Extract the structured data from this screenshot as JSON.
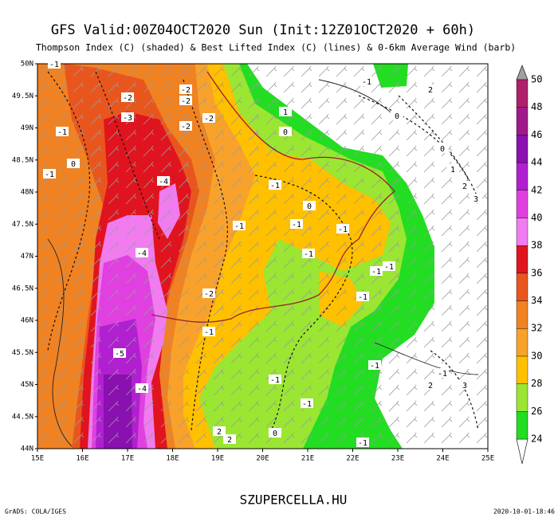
{
  "header": {
    "title": "GFS Valid:00Z04OCT2020 Sun (Init:12Z01OCT2020 + 60h)",
    "subtitle": "Thompson Index (C) (shaded) & Best Lifted Index (C) (lines) & 0-6km Average Wind (barb)"
  },
  "map": {
    "latitude_labels": [
      "50N",
      "49.5N",
      "49N",
      "48.5N",
      "48N",
      "47.5N",
      "47N",
      "46.5N",
      "46N",
      "45.5N",
      "45N",
      "44.5N",
      "44N"
    ],
    "longitude_labels": [
      "15E",
      "16E",
      "17E",
      "18E",
      "19E",
      "20E",
      "21E",
      "22E",
      "23E",
      "24E",
      "25E"
    ],
    "contour_labels": [
      "-1",
      "-2",
      "-2",
      "-2",
      "-3",
      "-2",
      "-2",
      "-1",
      "0",
      "-1",
      "-4",
      "-1",
      "-1",
      "0",
      "-1",
      "-1",
      "-4",
      "-1",
      "-1",
      "-1",
      "-2",
      "-1",
      "-1",
      "-5",
      "-4",
      "-1",
      "-1",
      "-1",
      "-1",
      "-1",
      "2",
      "1",
      "0",
      "0",
      "0",
      "1",
      "2",
      "3",
      "-1",
      "2",
      "3",
      "2",
      "0",
      "2"
    ]
  },
  "colorbar": {
    "levels": [
      24,
      26,
      28,
      30,
      32,
      34,
      36,
      38,
      40,
      42,
      44,
      46,
      48,
      50
    ],
    "colors": [
      "#22dd22",
      "#9ae633",
      "#ffc000",
      "#f8a22c",
      "#f08222",
      "#e8561e",
      "#e0141e",
      "#f07cf0",
      "#e040e0",
      "#b020d0",
      "#8a10b0",
      "#a01a8a",
      "#b0206a"
    ]
  },
  "footer": {
    "site": "SZUPERCELLA.HU",
    "software": "GrADS: COLA/IGES",
    "timestamp": "2020-10-01-18:46"
  }
}
